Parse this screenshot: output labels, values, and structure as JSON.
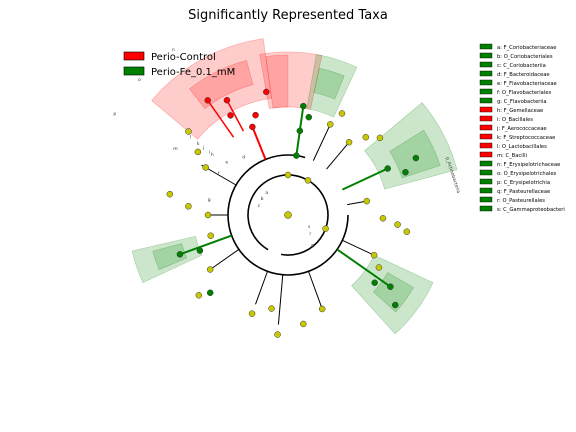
{
  "chart_data": {
    "type": "cladogram",
    "title": "Significantly Represented Taxa",
    "colors": {
      "Perio-Control": "#ff0000",
      "Perio-Fe_0.1_mM": "#008000",
      "neutral": "#c8c800"
    },
    "series": [
      {
        "name": "Perio-Control",
        "color": "#ff0000"
      },
      {
        "name": "Perio-Fe_0.1_mM",
        "color": "#008000"
      }
    ],
    "taxa": [
      {
        "code": "a",
        "name": "F_Coriobacteriaceae",
        "group": "Perio-Fe_0.1_mM"
      },
      {
        "code": "b",
        "name": "O_Coriobacteriales",
        "group": "Perio-Fe_0.1_mM"
      },
      {
        "code": "c",
        "name": "C_Coriobacteriia",
        "group": "Perio-Fe_0.1_mM"
      },
      {
        "code": "d",
        "name": "F_Bacteroidaceae",
        "group": "Perio-Fe_0.1_mM"
      },
      {
        "code": "e",
        "name": "F_Flavobacteriaceae",
        "group": "Perio-Fe_0.1_mM"
      },
      {
        "code": "f",
        "name": "O_Flavobacteriales",
        "group": "Perio-Fe_0.1_mM"
      },
      {
        "code": "g",
        "name": "C_Flavobacteriia",
        "group": "Perio-Fe_0.1_mM"
      },
      {
        "code": "h",
        "name": "F_Gemellaceae",
        "group": "Perio-Control"
      },
      {
        "code": "i",
        "name": "O_Bacillales",
        "group": "Perio-Control"
      },
      {
        "code": "j",
        "name": "F_Aerococcaceae",
        "group": "Perio-Control"
      },
      {
        "code": "k",
        "name": "F_Streptococcaceae",
        "group": "Perio-Control"
      },
      {
        "code": "l",
        "name": "O_Lactobacillales",
        "group": "Perio-Control"
      },
      {
        "code": "m",
        "name": "C_Bacilli",
        "group": "Perio-Control"
      },
      {
        "code": "n",
        "name": "F_Erysipelotrichaceae",
        "group": "Perio-Fe_0.1_mM"
      },
      {
        "code": "o",
        "name": "O_Erysipelotrichales",
        "group": "Perio-Fe_0.1_mM"
      },
      {
        "code": "p",
        "name": "C_Erysipelotrichia",
        "group": "Perio-Fe_0.1_mM"
      },
      {
        "code": "q",
        "name": "F_Pasteurellaceae",
        "group": "Perio-Fe_0.1_mM"
      },
      {
        "code": "r",
        "name": "O_Pasteurellales",
        "group": "Perio-Fe_0.1_mM"
      },
      {
        "code": "s",
        "name": "C_Gammaproteobacteri",
        "group": "Perio-Fe_0.1_mM"
      }
    ],
    "phylum_labels": [
      "p_Actinobacteria"
    ],
    "inner_labels": [
      "m",
      "l",
      "k",
      "j",
      "i",
      "h",
      "g",
      "f",
      "e",
      "d",
      "c",
      "b",
      "a",
      "s",
      "r",
      "q",
      "p",
      "o",
      "n"
    ],
    "legend_placement": "top-left"
  }
}
